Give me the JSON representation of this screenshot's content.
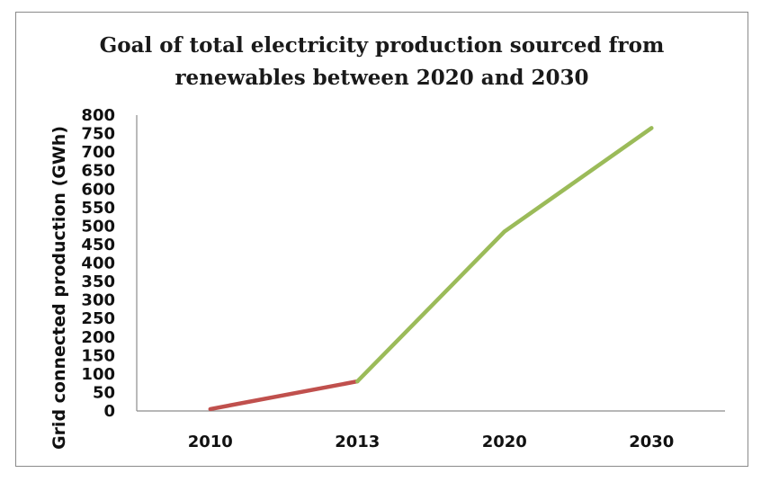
{
  "chart_data": {
    "type": "line",
    "title_lines": [
      "Goal of total electricity production sourced from",
      "renewables between 2020 and 2030"
    ],
    "xlabel": "",
    "ylabel": "Grid connected production (GWh)",
    "categories": [
      "2010",
      "2013",
      "2020",
      "2030"
    ],
    "ylim": [
      0,
      800
    ],
    "yticks": [
      0,
      50,
      100,
      150,
      200,
      250,
      300,
      350,
      400,
      450,
      500,
      550,
      600,
      650,
      700,
      750,
      800
    ],
    "grid": false,
    "legend": "none",
    "series": [
      {
        "values": [
          5,
          80,
          null,
          null
        ],
        "color": "#c0504d"
      },
      {
        "values": [
          null,
          80,
          485,
          765
        ],
        "color": "#9bbb59"
      }
    ]
  }
}
